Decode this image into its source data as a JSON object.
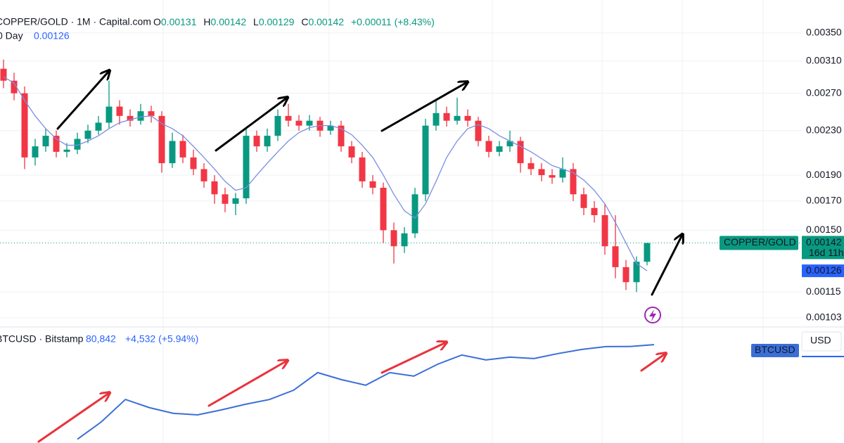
{
  "chart_data": [
    {
      "type": "candlestick",
      "symbol": "COPPER/GOLD · 1M · Capital.com",
      "ohlc_labels": [
        "O",
        "H",
        "L",
        "C"
      ],
      "ohlc_values": [
        0.00131,
        0.00142,
        0.00129,
        0.00142
      ],
      "change": "+0.00011 (+8.43%)",
      "indicator_label": "0 Day",
      "indicator_value": 0.00126,
      "price_tag": "COPPER/GOLD",
      "last_price": 0.00142,
      "countdown": "16d 11h",
      "up_color": "#089981",
      "down_color": "#f23645",
      "open": [
        0.003,
        0.00285,
        0.0027,
        0.00205,
        0.00215,
        0.00225,
        0.0021,
        0.00212,
        0.00222,
        0.0023,
        0.00238,
        0.00255,
        0.00245,
        0.0024,
        0.0025,
        0.00245,
        0.002,
        0.0022,
        0.00205,
        0.00195,
        0.00185,
        0.00175,
        0.00168,
        0.00172,
        0.00225,
        0.00215,
        0.00225,
        0.00245,
        0.0024,
        0.00235,
        0.0024,
        0.0023,
        0.00235,
        0.00215,
        0.00205,
        0.00185,
        0.0018,
        0.0015,
        0.0014,
        0.00148,
        0.00175,
        0.00235,
        0.00248,
        0.0024,
        0.00245,
        0.0024,
        0.0022,
        0.0021,
        0.00215,
        0.0022,
        0.002,
        0.00195,
        0.0019,
        0.00188,
        0.00195,
        0.00175,
        0.00165,
        0.0016,
        0.0014,
        0.00128,
        0.0012,
        0.00131
      ],
      "high": [
        0.00312,
        0.00295,
        0.00278,
        0.00222,
        0.00232,
        0.0023,
        0.00218,
        0.00228,
        0.00236,
        0.00245,
        0.00285,
        0.00262,
        0.00252,
        0.00258,
        0.00256,
        0.0025,
        0.00228,
        0.00226,
        0.00212,
        0.002,
        0.0019,
        0.0018,
        0.00176,
        0.00232,
        0.0023,
        0.00232,
        0.00252,
        0.00258,
        0.00246,
        0.00246,
        0.00244,
        0.0024,
        0.0024,
        0.0022,
        0.0021,
        0.0019,
        0.00184,
        0.00155,
        0.00152,
        0.0018,
        0.00242,
        0.00262,
        0.00255,
        0.00265,
        0.00252,
        0.00244,
        0.00225,
        0.0022,
        0.0023,
        0.00224,
        0.00205,
        0.002,
        0.00195,
        0.00205,
        0.002,
        0.0018,
        0.0017,
        0.00168,
        0.0016,
        0.00132,
        0.00134,
        0.00142
      ],
      "low": [
        0.00276,
        0.00262,
        0.00195,
        0.00198,
        0.0021,
        0.00205,
        0.00205,
        0.00208,
        0.00218,
        0.00226,
        0.00232,
        0.00236,
        0.00234,
        0.00236,
        0.00238,
        0.00192,
        0.00196,
        0.002,
        0.0019,
        0.0018,
        0.00168,
        0.00162,
        0.0016,
        0.00168,
        0.0021,
        0.0021,
        0.0022,
        0.00234,
        0.0023,
        0.0023,
        0.00224,
        0.00226,
        0.0021,
        0.002,
        0.0018,
        0.00175,
        0.00142,
        0.0013,
        0.00136,
        0.00145,
        0.0017,
        0.0023,
        0.00234,
        0.00236,
        0.00234,
        0.00215,
        0.00205,
        0.00206,
        0.0021,
        0.00192,
        0.0019,
        0.00185,
        0.00183,
        0.00184,
        0.0017,
        0.0016,
        0.00155,
        0.00135,
        0.00122,
        0.00116,
        0.00115,
        0.00129
      ],
      "close": [
        0.00285,
        0.0027,
        0.00205,
        0.00215,
        0.00225,
        0.0021,
        0.00212,
        0.00222,
        0.0023,
        0.00238,
        0.00255,
        0.00245,
        0.0024,
        0.0025,
        0.00245,
        0.002,
        0.0022,
        0.00205,
        0.00195,
        0.00185,
        0.00175,
        0.00168,
        0.00172,
        0.00225,
        0.00215,
        0.00225,
        0.00245,
        0.0024,
        0.00235,
        0.0024,
        0.0023,
        0.00235,
        0.00215,
        0.00205,
        0.00185,
        0.0018,
        0.0015,
        0.0014,
        0.00148,
        0.00175,
        0.00235,
        0.00248,
        0.0024,
        0.00245,
        0.0024,
        0.0022,
        0.0021,
        0.00215,
        0.0022,
        0.002,
        0.00195,
        0.0019,
        0.00188,
        0.00195,
        0.00175,
        0.00165,
        0.0016,
        0.0014,
        0.00128,
        0.0012,
        0.00131,
        0.00142
      ],
      "sma": {
        "color": "#7b8fe0",
        "values": [
          0.0029,
          0.00282,
          0.00262,
          0.00245,
          0.00232,
          0.00222,
          0.00216,
          0.00216,
          0.0022,
          0.00225,
          0.00232,
          0.00238,
          0.00241,
          0.00244,
          0.00245,
          0.00237,
          0.00232,
          0.00225,
          0.00215,
          0.00205,
          0.00195,
          0.00185,
          0.00178,
          0.0018,
          0.0019,
          0.002,
          0.0021,
          0.0022,
          0.00228,
          0.00233,
          0.00235,
          0.00235,
          0.00232,
          0.00226,
          0.00216,
          0.00205,
          0.0019,
          0.00175,
          0.00163,
          0.00158,
          0.00168,
          0.00185,
          0.00205,
          0.0022,
          0.00232,
          0.00236,
          0.00232,
          0.00225,
          0.0022,
          0.00215,
          0.0021,
          0.00204,
          0.00198,
          0.00195,
          0.00192,
          0.00186,
          0.00178,
          0.00168,
          0.00155,
          0.00142,
          0.0013,
          0.00126
        ]
      },
      "log_scale": true,
      "grid": true,
      "ylim": [
        0.00099,
        0.00403
      ],
      "yticks": [
        {
          "value": 0.0035,
          "label": "0.00350"
        },
        {
          "value": 0.0031,
          "label": "0.00310"
        },
        {
          "value": 0.0027,
          "label": "0.00270"
        },
        {
          "value": 0.0023,
          "label": "0.00230"
        },
        {
          "value": 0.0019,
          "label": "0.00190"
        },
        {
          "value": 0.0017,
          "label": "0.00170"
        },
        {
          "value": 0.0015,
          "label": "0.00150"
        },
        0.00115,
        0.00103
      ]
    },
    {
      "type": "line",
      "symbol": "BTCUSD · Bitstamp",
      "last_label": "80,842",
      "change": "+4,532 (+5.94%)",
      "tag": "BTCUSD",
      "currency": "USD",
      "color": "#3a6fd8",
      "log_scale": true,
      "ylim": [
        3000,
        130000
      ],
      "values": [
        3400,
        6100,
        12900,
        9800,
        8100,
        7700,
        9100,
        11000,
        12900,
        17600,
        31700,
        25000,
        20800,
        31700,
        28200,
        42100,
        57200,
        48500,
        53300,
        50800,
        60000,
        69100,
        75900,
        76000,
        80842
      ]
    }
  ]
}
